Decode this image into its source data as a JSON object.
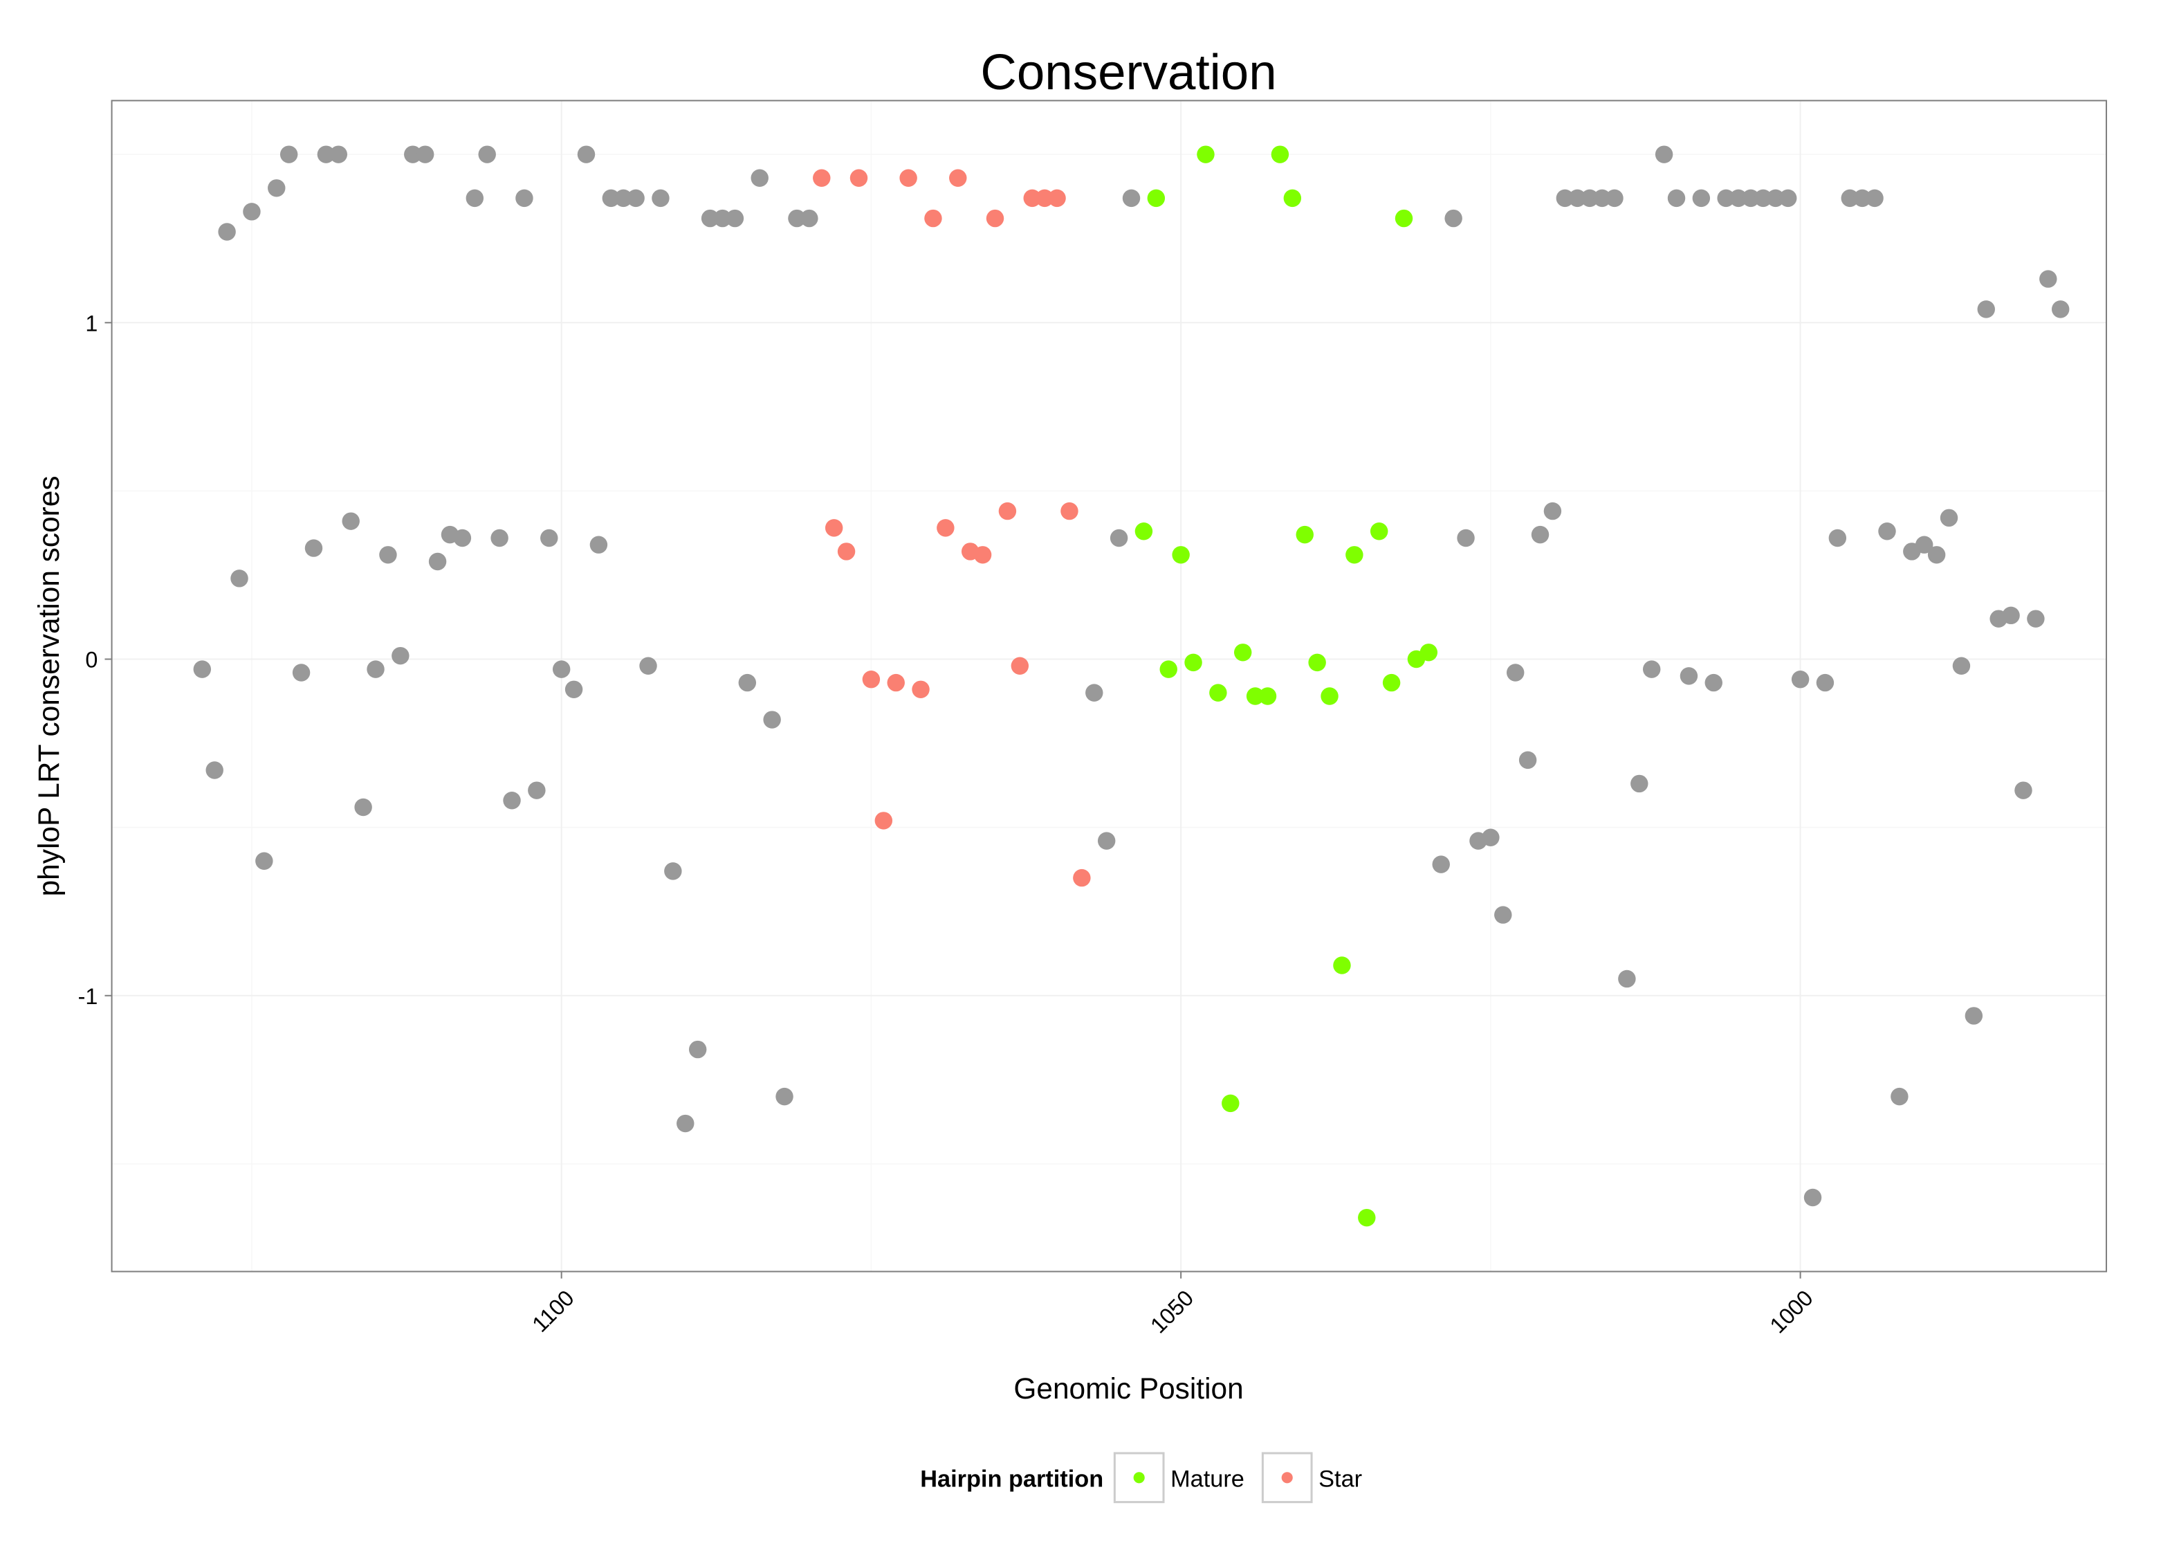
{
  "chart_data": {
    "type": "scatter",
    "title": "Conservation",
    "xlabel": "Genomic Position",
    "ylabel": "phyloP LRT conservation scores",
    "xlim": [
      1136.3,
      975.3
    ],
    "x_reversed": true,
    "ylim": [
      -1.82,
      1.66
    ],
    "x_ticks": [
      1100,
      1050,
      1000
    ],
    "x_tick_labels": [
      "1100",
      "1050",
      "1000"
    ],
    "y_ticks": [
      1,
      0,
      -1
    ],
    "y_tick_labels": [
      "1",
      "0",
      "-1"
    ],
    "grid": true,
    "legend": {
      "title": "Hairpin partition",
      "placement": "bottom",
      "entries": [
        {
          "label": "Mature",
          "color": "#7FFF00"
        },
        {
          "label": "Star",
          "color": "#FA8072"
        }
      ]
    },
    "series": [
      {
        "name": "Other",
        "color": "#999999",
        "in_legend": false,
        "segments": [
          {
            "x_start": 1129,
            "values": [
              -0.03,
              -0.33,
              1.27,
              0.24,
              1.33,
              -0.6,
              1.4,
              1.5,
              -0.04,
              0.33,
              1.5,
              1.5,
              0.41,
              -0.44,
              -0.03,
              0.31,
              0.01,
              1.5,
              1.5,
              0.29,
              0.37,
              0.36,
              1.37,
              1.5,
              0.36,
              -0.42,
              1.37,
              -0.39,
              0.36,
              -0.03,
              -0.09,
              1.5,
              0.34,
              1.37,
              1.37,
              1.37,
              -0.02,
              1.37,
              -0.63,
              -1.38,
              -1.16,
              1.31,
              1.31,
              1.31,
              -0.07,
              1.43,
              -0.18,
              -1.3,
              1.31,
              1.31
            ]
          },
          {
            "x_start": 1057,
            "values": [
              -0.1,
              -0.54,
              0.36,
              1.37
            ]
          },
          {
            "x_start": 1029,
            "values": [
              -0.61,
              1.31,
              0.36,
              -0.54,
              -0.53,
              -0.76,
              -0.04,
              -0.3,
              0.37,
              0.44,
              1.37,
              1.37,
              1.37,
              1.37,
              1.37,
              -0.95,
              -0.37,
              -0.03,
              1.5,
              1.37,
              -0.05,
              1.37,
              -0.07,
              1.37,
              1.37,
              1.37,
              1.37,
              1.37,
              1.37,
              -0.06,
              -1.6,
              -0.07,
              0.36,
              1.37,
              1.37,
              1.37,
              0.38,
              -1.3,
              0.32,
              0.34,
              0.31,
              0.42,
              -0.02,
              -1.06,
              1.04,
              0.12,
              0.13,
              -0.39,
              0.12,
              1.13,
              1.04
            ]
          }
        ]
      },
      {
        "name": "Star",
        "color": "#FA8072",
        "in_legend": true,
        "segments": [
          {
            "x_start": 1079,
            "values": [
              1.43,
              0.39,
              0.32,
              1.43,
              -0.06,
              -0.48,
              -0.07,
              1.43,
              -0.09,
              1.31,
              0.39,
              1.43,
              0.32,
              0.31,
              1.31,
              0.44,
              -0.02,
              1.37,
              1.37,
              1.37,
              0.44,
              -0.65
            ]
          }
        ]
      },
      {
        "name": "Mature",
        "color": "#7FFF00",
        "in_legend": true,
        "segments": [
          {
            "x_start": 1053,
            "values": [
              0.38,
              1.37,
              -0.03,
              0.31,
              -0.01,
              1.5,
              -0.1,
              -1.32,
              0.02,
              -0.11,
              -0.11,
              1.5,
              1.37,
              0.37,
              -0.01,
              -0.11,
              -0.91,
              0.31,
              -1.66,
              0.38,
              -0.07,
              1.31,
              0.0,
              0.02
            ]
          }
        ]
      }
    ]
  }
}
